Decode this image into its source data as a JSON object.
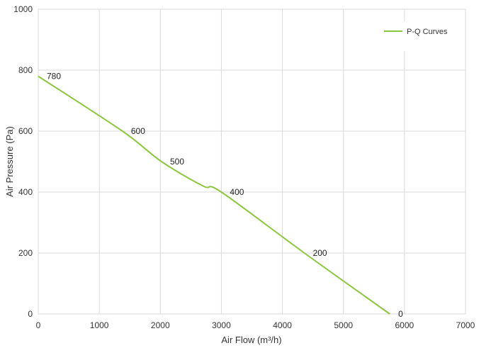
{
  "chart_data": {
    "type": "line",
    "title": "",
    "xlabel": "Air Flow  (m³/h)",
    "ylabel": "Air Pressure  (Pa)",
    "xlim": [
      0,
      7000
    ],
    "ylim": [
      0,
      1000
    ],
    "xticks": [
      0,
      1000,
      2000,
      3000,
      4000,
      5000,
      6000,
      7000
    ],
    "yticks": [
      0,
      200,
      400,
      600,
      800,
      1000
    ],
    "grid": true,
    "legend_position": "top-right",
    "series": [
      {
        "name": "P-Q Curves",
        "color": "#8dc63f",
        "x": [
          0,
          1380,
          2020,
          2700,
          3000,
          4360,
          5760
        ],
        "y": [
          780,
          600,
          500,
          420,
          400,
          200,
          0
        ],
        "labels": [
          "780",
          "600",
          "500",
          "",
          "400",
          "200",
          "0"
        ]
      }
    ]
  }
}
